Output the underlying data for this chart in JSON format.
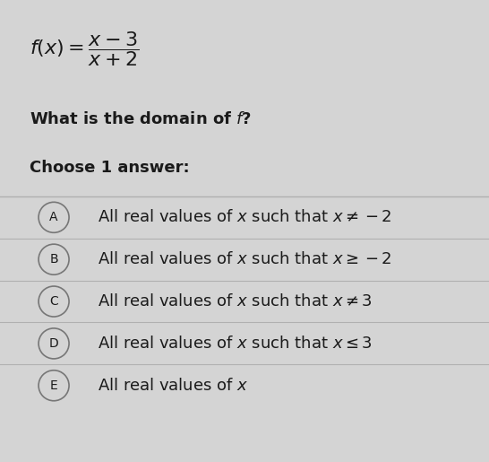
{
  "background_color": "#d4d4d4",
  "card_color": "#e2e2e2",
  "question": "What is the domain of $f$?",
  "instruction": "Choose 1 answer:",
  "options": [
    {
      "label": "A",
      "text": "All real values of $x$ such that $x \\neq -2$"
    },
    {
      "label": "B",
      "text": "All real values of $x$ such that $x \\geq -2$"
    },
    {
      "label": "C",
      "text": "All real values of $x$ such that $x \\neq 3$"
    },
    {
      "label": "D",
      "text": "All real values of $x$ such that $x \\leq 3$"
    },
    {
      "label": "E",
      "text": "All real values of $x$"
    }
  ],
  "divider_color": "#b0b0b0",
  "text_color": "#1a1a1a",
  "circle_edge_color": "#777777",
  "circle_face_color": "#d4d4d4",
  "question_fontsize": 13,
  "option_fontsize": 13
}
